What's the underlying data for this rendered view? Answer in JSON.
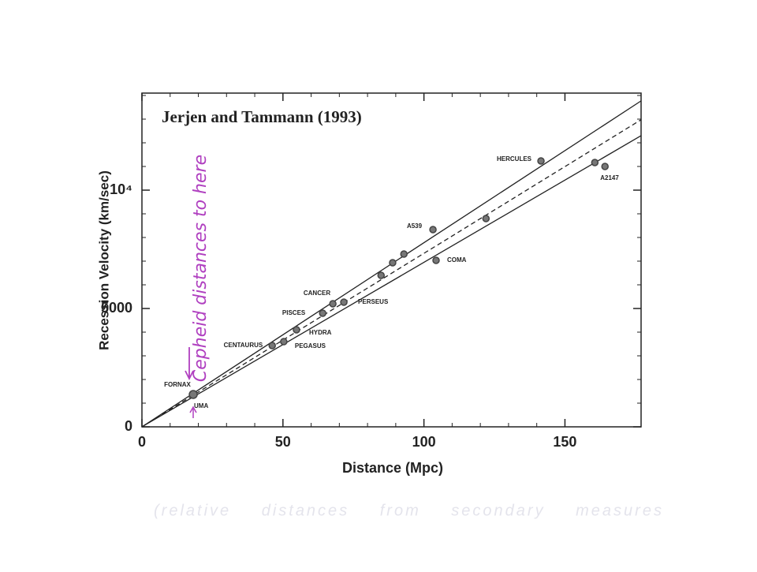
{
  "chart_data": {
    "type": "scatter",
    "title": "Jerjen and Tammann (1993)",
    "x_label": "Distance (Mpc)",
    "y_label": "Recession Velocity (km/sec)",
    "x": [
      18.2,
      46.2,
      50.3,
      54.8,
      64.1,
      67.7,
      71.6,
      84.8,
      88.9,
      92.9,
      103.2,
      104.3,
      122.0,
      141.5,
      160.6,
      164.2
    ],
    "values": [
      1367,
      3433,
      3600,
      4100,
      4800,
      5200,
      5267,
      6400,
      6933,
      7300,
      8333,
      7033,
      8800,
      11233,
      11167,
      11000
    ],
    "labels": [
      "FORNAX",
      "CENTAURUS",
      "PEGASUS",
      "HYDRA",
      "PISCES",
      "CANCER",
      "PERSEUS",
      null,
      null,
      null,
      "A539",
      "COMA",
      null,
      "HERCULES",
      null,
      "A2147"
    ],
    "extra_label": "UMA",
    "fit_lines": [
      {
        "slope": 77.8,
        "style": "solid"
      },
      {
        "slope": 73.3,
        "style": "dashed"
      },
      {
        "slope": 69.5,
        "style": "solid"
      }
    ],
    "xlim": [
      0,
      177
    ],
    "ylim": [
      0,
      14100
    ],
    "xticks": [
      0,
      50,
      100,
      150
    ],
    "yticks": [
      0,
      5000,
      {
        "value": 10000,
        "label": "10⁴"
      }
    ],
    "annotations": [
      "Cepheid distances to here",
      "(relative distances from secondary measures"
    ],
    "color": "#444444"
  }
}
